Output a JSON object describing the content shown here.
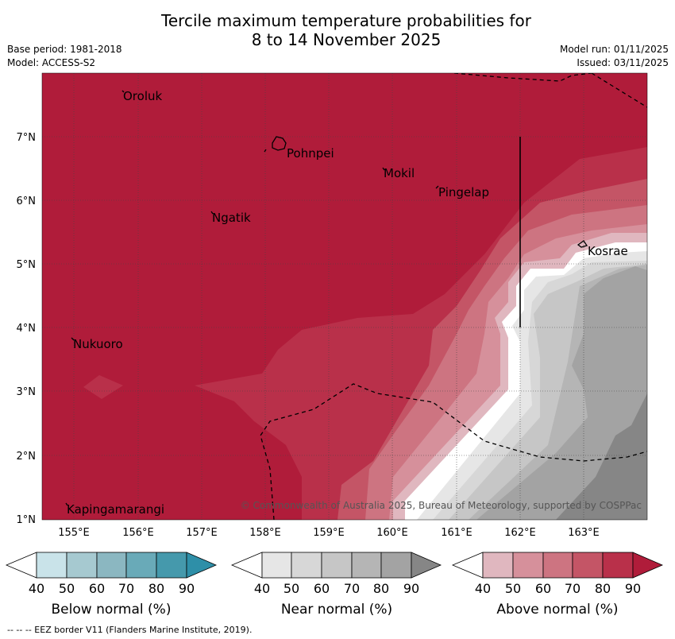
{
  "title": {
    "line1": "Tercile maximum temperature probabilities for",
    "line2": "8 to 14 November 2025"
  },
  "meta": {
    "base_period": "Base period: 1981-2018",
    "model": "Model: ACCESS-S2",
    "model_run": "Model run: 01/11/2025",
    "issued": "Issued: 03/11/2025"
  },
  "map": {
    "lon_ticks": [
      "155°E",
      "156°E",
      "157°E",
      "158°E",
      "159°E",
      "160°E",
      "161°E",
      "162°E",
      "163°E"
    ],
    "lat_ticks": [
      "7°N",
      "6°N",
      "5°N",
      "4°N",
      "3°N",
      "2°N",
      "1°N"
    ],
    "places": [
      "Oroluk",
      "Pohnpei",
      "Mokil",
      "Pingelap",
      "Ngatik",
      "Kosrae",
      "Nukuoro",
      "Kapingamarangi"
    ],
    "copyright": "© Commonwealth of Australia 2025, Bureau of Meteorology, supported by COSPPac",
    "colors": {
      "above": [
        "#e0b7bf",
        "#d6909b",
        "#cd7481",
        "#c45566",
        "#b9304a",
        "#b01c3a"
      ],
      "near": [
        "#e6e6e6",
        "#d7d7d7",
        "#c6c6c6",
        "#b5b5b5",
        "#a3a3a3",
        "#868686"
      ],
      "below": [
        "#c9e3e9",
        "#a6c9d0",
        "#8bb7c1",
        "#69aab8",
        "#4599ac",
        "#2e8fa8"
      ]
    }
  },
  "legends": {
    "ticks": [
      "40",
      "50",
      "60",
      "70",
      "80",
      "90"
    ],
    "below_label": "Below normal (%)",
    "near_label": "Near normal (%)",
    "above_label": "Above normal (%)"
  },
  "footnote": "--  --  -- EEZ border V11 (Flanders Marine Institute, 2019)."
}
